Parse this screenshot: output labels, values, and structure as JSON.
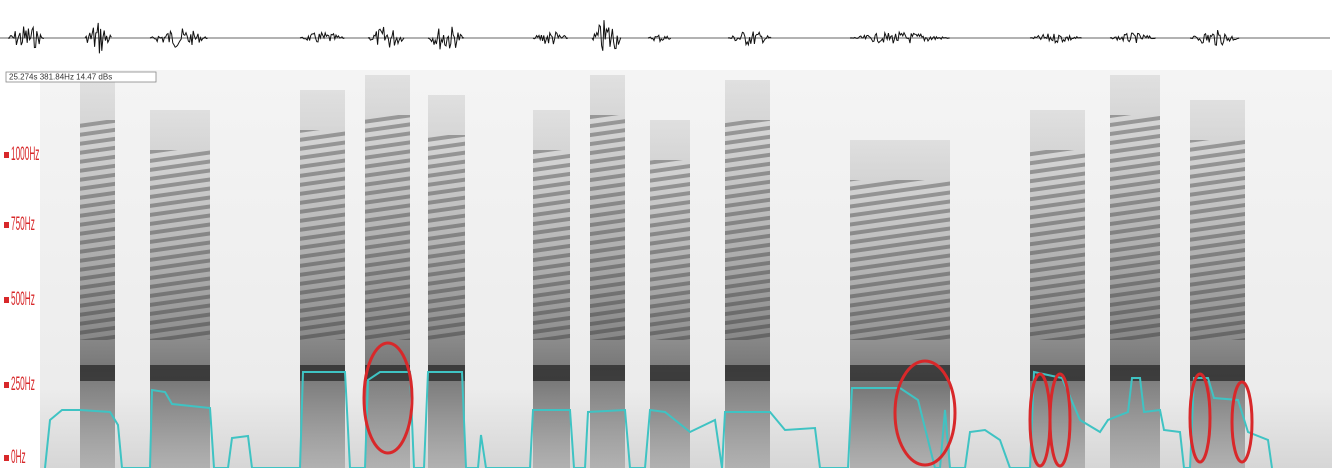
{
  "status_readout": "25.274s 381.84Hz 14.47 dBs",
  "frequency_labels": [
    "1000Hz",
    "750Hz",
    "500Hz",
    "250Hz",
    "0Hz"
  ]
}
